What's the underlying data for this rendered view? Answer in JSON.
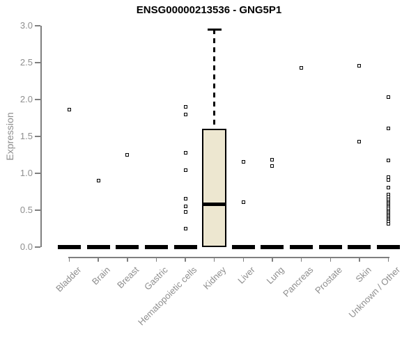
{
  "title": "ENSG00000213536 - GNG5P1",
  "chart_data": {
    "type": "boxplot",
    "title": "ENSG00000213536 - GNG5P1",
    "xlabel": "",
    "ylabel": "Expression",
    "ylim": [
      0.0,
      3.0
    ],
    "ytick_labels": [
      "0.0",
      "0.5",
      "1.0",
      "1.5",
      "2.0",
      "2.5",
      "3.0"
    ],
    "ytick_values": [
      0.0,
      0.5,
      1.0,
      1.5,
      2.0,
      2.5,
      3.0
    ],
    "grid": false,
    "legend": null,
    "categories": [
      "Bladder",
      "Brain",
      "Breast",
      "Gastric",
      "Hematopoietic cells",
      "Kidney",
      "Liver",
      "Lung",
      "Pancreas",
      "Prostate",
      "Skin",
      "Unknown / Other"
    ],
    "boxes": [
      {
        "category": "Bladder",
        "q1": 0,
        "median": 0,
        "q3": 0,
        "whisker_low": 0,
        "whisker_high": 0,
        "outliers": [
          1.86
        ]
      },
      {
        "category": "Brain",
        "q1": 0,
        "median": 0,
        "q3": 0,
        "whisker_low": 0,
        "whisker_high": 0,
        "outliers": [
          0.9
        ]
      },
      {
        "category": "Breast",
        "q1": 0,
        "median": 0,
        "q3": 0,
        "whisker_low": 0,
        "whisker_high": 0,
        "outliers": [
          1.25
        ]
      },
      {
        "category": "Gastric",
        "q1": 0,
        "median": 0,
        "q3": 0,
        "whisker_low": 0,
        "whisker_high": 0,
        "outliers": []
      },
      {
        "category": "Hematopoietic cells",
        "q1": 0,
        "median": 0,
        "q3": 0,
        "whisker_low": 0,
        "whisker_high": 0,
        "outliers": [
          1.9,
          1.8,
          1.28,
          1.04,
          0.66,
          0.55,
          0.48,
          0.25
        ]
      },
      {
        "category": "Kidney",
        "q1": 0,
        "median": 0.58,
        "q3": 1.6,
        "whisker_low": 0,
        "whisker_high": 2.95,
        "outliers": []
      },
      {
        "category": "Liver",
        "q1": 0,
        "median": 0,
        "q3": 0,
        "whisker_low": 0,
        "whisker_high": 0,
        "outliers": [
          1.16,
          0.61
        ]
      },
      {
        "category": "Lung",
        "q1": 0,
        "median": 0,
        "q3": 0,
        "whisker_low": 0,
        "whisker_high": 0,
        "outliers": [
          1.18,
          1.1
        ]
      },
      {
        "category": "Pancreas",
        "q1": 0,
        "median": 0,
        "q3": 0,
        "whisker_low": 0,
        "whisker_high": 0,
        "outliers": [
          2.43
        ]
      },
      {
        "category": "Prostate",
        "q1": 0,
        "median": 0,
        "q3": 0,
        "whisker_low": 0,
        "whisker_high": 0,
        "outliers": []
      },
      {
        "category": "Skin",
        "q1": 0,
        "median": 0,
        "q3": 0,
        "whisker_low": 0,
        "whisker_high": 0,
        "outliers": [
          2.46,
          1.43
        ]
      },
      {
        "category": "Unknown / Other",
        "q1": 0,
        "median": 0,
        "q3": 0,
        "whisker_low": 0,
        "whisker_high": 0,
        "outliers": [
          2.03,
          1.61,
          1.17,
          0.95,
          0.91,
          0.81,
          0.71,
          0.68,
          0.65,
          0.62,
          0.6,
          0.58,
          0.56,
          0.54,
          0.52,
          0.5,
          0.48,
          0.46,
          0.44,
          0.42,
          0.4,
          0.38,
          0.36,
          0.34,
          0.32
        ]
      }
    ],
    "colors": {
      "box_fill": "#EDE7D0",
      "box_border": "#000000",
      "median": "#000000",
      "outlier": "#000000",
      "axis": "#7f7f7f",
      "tick_text": "#8e8e8e",
      "title_text": "#000000",
      "background": "#ffffff"
    }
  }
}
